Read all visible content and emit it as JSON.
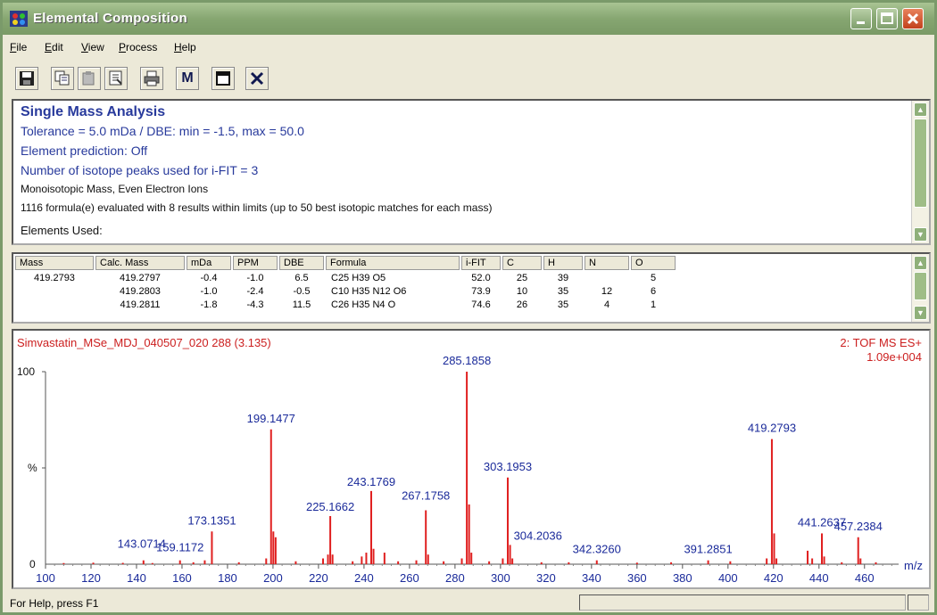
{
  "window": {
    "title": "Elemental Composition"
  },
  "menu": [
    {
      "accel": "F",
      "rest": "ile"
    },
    {
      "accel": "E",
      "rest": "dit"
    },
    {
      "accel": "V",
      "rest": "iew"
    },
    {
      "accel": "P",
      "rest": "rocess"
    },
    {
      "accel": "H",
      "rest": "elp"
    }
  ],
  "toolbar": {
    "m_label": "M",
    "icons": [
      "save-icon",
      "copy-icon",
      "paste-icon",
      "properties-icon",
      "print-icon",
      "m-icon",
      "window-icon",
      "close-x-icon"
    ]
  },
  "info": {
    "heading": "Single Mass Analysis",
    "tolerance": "Tolerance = 5.0 mDa   /   DBE: min = -1.5, max = 50.0",
    "prediction": "Element prediction: Off",
    "isotope": "Number of isotope peaks used for i-FIT = 3",
    "mass_type": "Monoisotopic Mass, Even Electron Ions",
    "summary": "1116 formula(e) evaluated with 8 results within limits (up to 50 best isotopic matches for each mass)",
    "elements": "Elements Used:"
  },
  "results": {
    "headers": [
      "Mass",
      "Calc. Mass",
      "mDa",
      "PPM",
      "DBE",
      "Formula",
      "i-FIT",
      "C",
      "H",
      "N",
      "O"
    ],
    "rows": [
      [
        "419.2793",
        "419.2797",
        "-0.4",
        "-1.0",
        "6.5",
        "C25  H39  O5",
        "52.0",
        "25",
        "39",
        "",
        "5"
      ],
      [
        "",
        "419.2803",
        "-1.0",
        "-2.4",
        "-0.5",
        "C10  H35  N12  O6",
        "73.9",
        "10",
        "35",
        "12",
        "6"
      ],
      [
        "",
        "419.2811",
        "-1.8",
        "-4.3",
        "11.5",
        "C26  H35  N4  O",
        "74.6",
        "26",
        "35",
        "4",
        "1"
      ]
    ]
  },
  "spectrum": {
    "sample": "Simvastatin_MSe_MDJ_040507_020 288 (3.135)",
    "mode": "2: TOF MS ES+",
    "intensity": "1.09e+004",
    "y_top_label": "100",
    "y_mid_label": "%",
    "y_zero_label": "0",
    "x_unit": "m/z"
  },
  "status": {
    "help": "For Help, press F1"
  },
  "colors": {
    "peak": "#e02020",
    "label": "#1a2a9a",
    "header": "#cc2020"
  },
  "chart_data": {
    "type": "bar",
    "xlim": [
      100,
      475
    ],
    "ylim": [
      0,
      100
    ],
    "x_ticks": [
      100,
      120,
      140,
      160,
      180,
      200,
      220,
      240,
      260,
      280,
      300,
      320,
      340,
      360,
      380,
      400,
      420,
      440,
      460
    ],
    "peaks": [
      {
        "x": 108,
        "y": 0.6
      },
      {
        "x": 121,
        "y": 0.8
      },
      {
        "x": 134,
        "y": 0.7
      },
      {
        "x": 143.0714,
        "y": 2
      },
      {
        "x": 147,
        "y": 0.6
      },
      {
        "x": 159.1172,
        "y": 2
      },
      {
        "x": 165,
        "y": 1
      },
      {
        "x": 170,
        "y": 2
      },
      {
        "x": 173.1351,
        "y": 17
      },
      {
        "x": 185,
        "y": 1
      },
      {
        "x": 197,
        "y": 3
      },
      {
        "x": 199.1477,
        "y": 70
      },
      {
        "x": 200.15,
        "y": 17
      },
      {
        "x": 201.15,
        "y": 14
      },
      {
        "x": 210,
        "y": 1.5
      },
      {
        "x": 222,
        "y": 3
      },
      {
        "x": 224.16,
        "y": 5
      },
      {
        "x": 225.1662,
        "y": 25
      },
      {
        "x": 226.17,
        "y": 5
      },
      {
        "x": 235,
        "y": 1.5
      },
      {
        "x": 239,
        "y": 4
      },
      {
        "x": 241,
        "y": 6
      },
      {
        "x": 243.1769,
        "y": 38
      },
      {
        "x": 244.18,
        "y": 8
      },
      {
        "x": 249,
        "y": 6
      },
      {
        "x": 255,
        "y": 1.5
      },
      {
        "x": 263,
        "y": 2
      },
      {
        "x": 267.1758,
        "y": 28
      },
      {
        "x": 268.18,
        "y": 5
      },
      {
        "x": 275,
        "y": 1.5
      },
      {
        "x": 283,
        "y": 3
      },
      {
        "x": 285.1858,
        "y": 100
      },
      {
        "x": 286.19,
        "y": 31
      },
      {
        "x": 287.19,
        "y": 6
      },
      {
        "x": 295,
        "y": 1.5
      },
      {
        "x": 301,
        "y": 3
      },
      {
        "x": 303.1953,
        "y": 45
      },
      {
        "x": 304.2036,
        "y": 10
      },
      {
        "x": 305.2,
        "y": 3
      },
      {
        "x": 318,
        "y": 1
      },
      {
        "x": 330,
        "y": 1
      },
      {
        "x": 342.326,
        "y": 2
      },
      {
        "x": 360,
        "y": 0.8
      },
      {
        "x": 375,
        "y": 1
      },
      {
        "x": 391.2851,
        "y": 2
      },
      {
        "x": 401,
        "y": 1.5
      },
      {
        "x": 417,
        "y": 3
      },
      {
        "x": 419.2793,
        "y": 65
      },
      {
        "x": 420.28,
        "y": 16
      },
      {
        "x": 421.28,
        "y": 3
      },
      {
        "x": 435,
        "y": 7
      },
      {
        "x": 437,
        "y": 3
      },
      {
        "x": 441.2637,
        "y": 16
      },
      {
        "x": 442.27,
        "y": 4
      },
      {
        "x": 450,
        "y": 1
      },
      {
        "x": 457.2384,
        "y": 14
      },
      {
        "x": 458.24,
        "y": 3
      },
      {
        "x": 465,
        "y": 1
      }
    ],
    "labels": [
      {
        "text": "143.0714",
        "x": 143.0714
      },
      {
        "text": "159.1172",
        "x": 159.1172
      },
      {
        "text": "173.1351",
        "x": 173.1351
      },
      {
        "text": "199.1477",
        "x": 199.1477
      },
      {
        "text": "225.1662",
        "x": 225.1662
      },
      {
        "text": "243.1769",
        "x": 243.1769
      },
      {
        "text": "267.1758",
        "x": 267.1758
      },
      {
        "text": "285.1858",
        "x": 285.1858
      },
      {
        "text": "303.1953",
        "x": 303.1953
      },
      {
        "text": "304.2036",
        "x": 304.2036
      },
      {
        "text": "342.3260",
        "x": 342.326
      },
      {
        "text": "391.2851",
        "x": 391.2851
      },
      {
        "text": "419.2793",
        "x": 419.2793
      },
      {
        "text": "441.2637",
        "x": 441.2637
      },
      {
        "text": "457.2384",
        "x": 457.2384
      }
    ]
  }
}
